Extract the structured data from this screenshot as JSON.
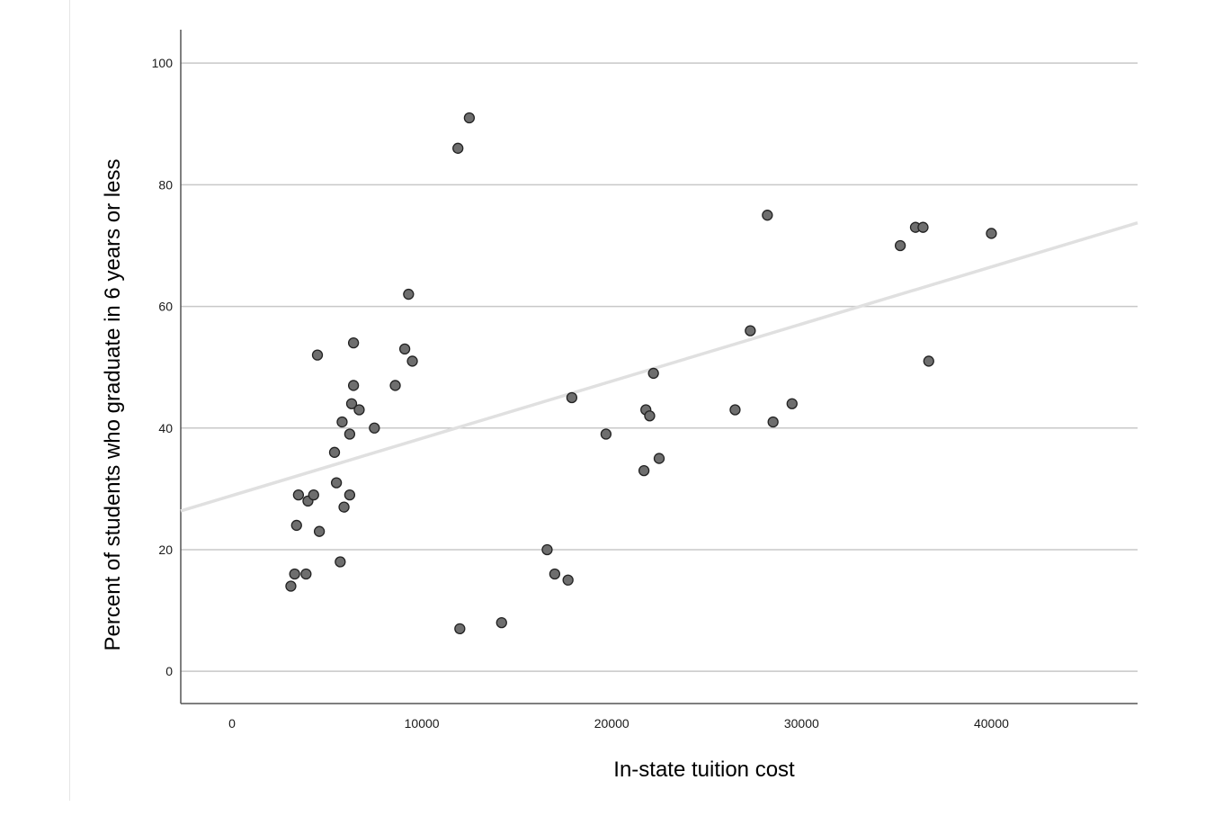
{
  "chart_data": {
    "type": "scatter",
    "title": "",
    "xlabel": "In-state tuition cost",
    "ylabel": "Percent of students who graduate in 6 years or less",
    "xlim": [
      -2700,
      47700
    ],
    "ylim": [
      -5.3,
      105.5
    ],
    "x_ticks": [
      0,
      10000,
      20000,
      30000,
      40000
    ],
    "y_ticks": [
      0,
      20,
      40,
      60,
      80,
      100
    ],
    "grid": "horizontal",
    "legend": "none",
    "colors": {
      "point_fill": "#6e6e6e",
      "point_stroke": "#222222",
      "fit_line": "#e0e0e0",
      "grid": "#c8c8c8",
      "axis": "#555555"
    },
    "fit_line": {
      "intercept": 28.9,
      "slope": 0.00094
    },
    "points": [
      {
        "x": 3100,
        "y": 14
      },
      {
        "x": 3300,
        "y": 16
      },
      {
        "x": 3400,
        "y": 24
      },
      {
        "x": 3500,
        "y": 29
      },
      {
        "x": 3900,
        "y": 16
      },
      {
        "x": 4000,
        "y": 28
      },
      {
        "x": 4300,
        "y": 29
      },
      {
        "x": 4500,
        "y": 52
      },
      {
        "x": 4600,
        "y": 23
      },
      {
        "x": 5400,
        "y": 36
      },
      {
        "x": 5500,
        "y": 31
      },
      {
        "x": 5700,
        "y": 18
      },
      {
        "x": 5800,
        "y": 41
      },
      {
        "x": 5900,
        "y": 27
      },
      {
        "x": 6200,
        "y": 39
      },
      {
        "x": 6200,
        "y": 29
      },
      {
        "x": 6300,
        "y": 44
      },
      {
        "x": 6400,
        "y": 47
      },
      {
        "x": 6400,
        "y": 54
      },
      {
        "x": 6700,
        "y": 43
      },
      {
        "x": 7500,
        "y": 40
      },
      {
        "x": 8600,
        "y": 47
      },
      {
        "x": 9100,
        "y": 53
      },
      {
        "x": 9300,
        "y": 62
      },
      {
        "x": 9500,
        "y": 51
      },
      {
        "x": 11900,
        "y": 86
      },
      {
        "x": 12000,
        "y": 7
      },
      {
        "x": 12500,
        "y": 91
      },
      {
        "x": 14200,
        "y": 8
      },
      {
        "x": 16600,
        "y": 20
      },
      {
        "x": 17000,
        "y": 16
      },
      {
        "x": 17700,
        "y": 15
      },
      {
        "x": 17900,
        "y": 45
      },
      {
        "x": 19700,
        "y": 39
      },
      {
        "x": 21700,
        "y": 33
      },
      {
        "x": 21800,
        "y": 43
      },
      {
        "x": 22000,
        "y": 42
      },
      {
        "x": 22200,
        "y": 49
      },
      {
        "x": 22500,
        "y": 35
      },
      {
        "x": 26500,
        "y": 43
      },
      {
        "x": 27300,
        "y": 56
      },
      {
        "x": 28200,
        "y": 75
      },
      {
        "x": 28500,
        "y": 41
      },
      {
        "x": 29500,
        "y": 44
      },
      {
        "x": 35200,
        "y": 70
      },
      {
        "x": 36000,
        "y": 73
      },
      {
        "x": 36400,
        "y": 73
      },
      {
        "x": 36700,
        "y": 51
      },
      {
        "x": 40000,
        "y": 72
      }
    ]
  }
}
